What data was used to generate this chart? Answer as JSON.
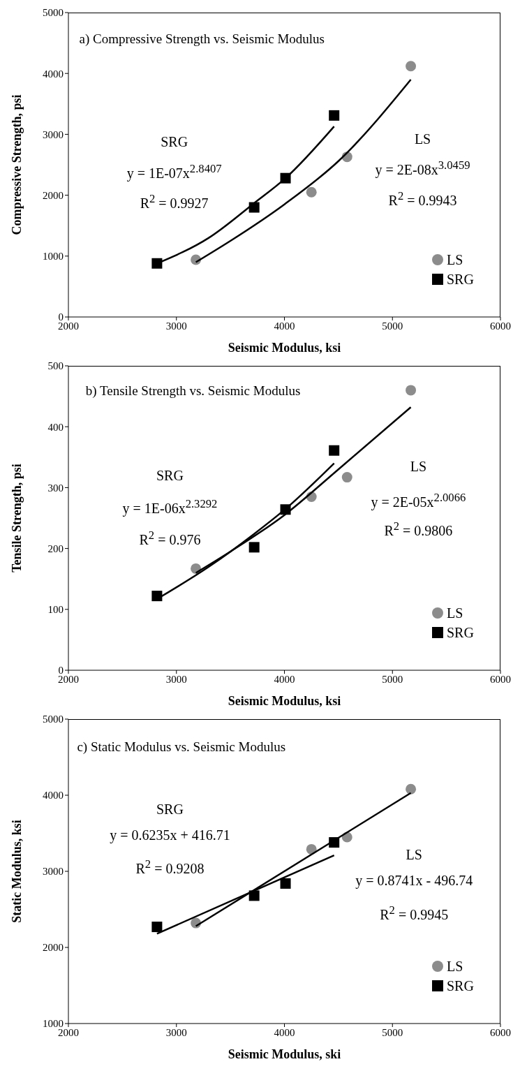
{
  "chart_data": [
    {
      "type": "scatter",
      "title": "a) Compressive Strength vs. Seismic Modulus",
      "xlabel": "Seismic Modulus, ksi",
      "ylabel": "Compressive Strength, psi",
      "xlim": [
        2000,
        6000
      ],
      "ylim": [
        0,
        5000
      ],
      "xticks": [
        2000,
        3000,
        4000,
        5000,
        6000
      ],
      "yticks": [
        0,
        1000,
        2000,
        3000,
        4000,
        5000
      ],
      "legend": "bottom right",
      "grid": false,
      "annotations": [
        "SRG",
        "y = 1E-07x$^{2.8407}$",
        "R$^{2}$ = 0.9927",
        "LS",
        "y = 2E-08x$^{3.0459}$",
        "R$^{2}$ = 0.9943"
      ],
      "series": [
        {
          "name": "LS",
          "color": "#8c8c8c",
          "marker": "circle",
          "x": [
            3180,
            4250,
            4580,
            5170
          ],
          "values": [
            940,
            2050,
            2630,
            4120
          ]
        },
        {
          "name": "SRG",
          "color": "#000000",
          "marker": "square",
          "x": [
            2820,
            3720,
            4010,
            4460
          ],
          "values": [
            880,
            1800,
            2280,
            3310
          ]
        },
        {
          "type": "line",
          "color": "#000000",
          "marker": "none",
          "x": [
            3180,
            3500,
            4000,
            4500,
            5170
          ],
          "values": [
            900,
            1250,
            1850,
            2560,
            3900
          ]
        },
        {
          "type": "line",
          "color": "#000000",
          "marker": "none",
          "x": [
            2820,
            3300,
            3720,
            4010,
            4460
          ],
          "values": [
            880,
            1300,
            1870,
            2280,
            3130
          ]
        }
      ]
    },
    {
      "type": "scatter",
      "title": "b) Tensile Strength vs. Seismic Modulus",
      "xlabel": "Seismic Modulus, ksi",
      "ylabel": "Tensile Strength, psi",
      "xlim": [
        2000,
        6000
      ],
      "ylim": [
        0,
        500
      ],
      "xticks": [
        2000,
        3000,
        4000,
        5000,
        6000
      ],
      "yticks": [
        0,
        100,
        200,
        300,
        400,
        500
      ],
      "legend": "bottom right",
      "grid": false,
      "annotations": [
        "SRG",
        "y = 1E-06x$^{2.3292}$",
        "R$^{2}$ = 0.976",
        "LS",
        "y = 2E-05x$^{2.0066}$",
        "R$^{2}$ = 0.9806"
      ],
      "series": [
        {
          "name": "LS",
          "color": "#8c8c8c",
          "marker": "circle",
          "x": [
            3180,
            4250,
            4580,
            5170
          ],
          "values": [
            167,
            285,
            317,
            460
          ]
        },
        {
          "name": "SRG",
          "color": "#000000",
          "marker": "square",
          "x": [
            2820,
            3720,
            4010,
            4460
          ],
          "values": [
            122,
            202,
            264,
            361
          ]
        },
        {
          "type": "line",
          "color": "#000000",
          "marker": "none",
          "x": [
            3180,
            3500,
            4000,
            4500,
            5170
          ],
          "values": [
            160,
            195,
            255,
            330,
            432
          ]
        },
        {
          "type": "line",
          "color": "#000000",
          "marker": "none",
          "x": [
            2820,
            3300,
            3720,
            4010,
            4460
          ],
          "values": [
            117,
            170,
            224,
            265,
            340
          ]
        }
      ]
    },
    {
      "type": "scatter",
      "title": "c) Static Modulus vs. Seismic Modulus",
      "xlabel": "Seismic Modulus, ski",
      "ylabel": "Static Modulus, ksi",
      "xlim": [
        2000,
        6000
      ],
      "ylim": [
        1000,
        5000
      ],
      "xticks": [
        2000,
        3000,
        4000,
        5000,
        6000
      ],
      "yticks": [
        1000,
        2000,
        3000,
        4000,
        5000
      ],
      "legend": "bottom right",
      "grid": false,
      "annotations": [
        "SRG",
        "y = 0.6235x + 416.71",
        "R$^{2}$ = 0.9208",
        "LS",
        "y = 0.8741x - 496.74",
        "R$^{2}$ = 0.9945"
      ],
      "series": [
        {
          "name": "LS",
          "color": "#8c8c8c",
          "marker": "circle",
          "x": [
            3180,
            4250,
            4580,
            5170
          ],
          "values": [
            2320,
            3290,
            3450,
            4080
          ]
        },
        {
          "name": "SRG",
          "color": "#000000",
          "marker": "square",
          "x": [
            2820,
            3720,
            4010,
            4460
          ],
          "values": [
            2270,
            2680,
            2840,
            3380
          ]
        },
        {
          "type": "line",
          "color": "#000000",
          "marker": "none",
          "x": [
            3180,
            5170
          ],
          "values": [
            2280,
            4030
          ]
        },
        {
          "type": "line",
          "color": "#000000",
          "marker": "none",
          "x": [
            2820,
            4460
          ],
          "values": [
            2180,
            3210
          ]
        }
      ]
    }
  ]
}
